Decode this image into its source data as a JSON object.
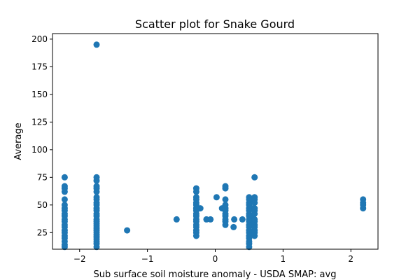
{
  "chart_data": {
    "type": "scatter",
    "title": "Scatter plot for Snake Gourd",
    "xlabel": "Sub surface soil moisture anomaly - USDA SMAP: avg",
    "ylabel": "Average",
    "xlim": [
      -2.4,
      2.4
    ],
    "ylim": [
      10,
      205
    ],
    "xticks": [
      -2,
      -1,
      0,
      1,
      2
    ],
    "xtick_labels": [
      "−2",
      "−1",
      "0",
      "1",
      "2"
    ],
    "yticks": [
      25,
      50,
      75,
      100,
      125,
      150,
      175,
      200
    ],
    "ytick_labels": [
      "25",
      "50",
      "75",
      "100",
      "125",
      "150",
      "175",
      "200"
    ],
    "grid": false,
    "marker_color": "#1f77b4",
    "points": [
      [
        -2.22,
        12
      ],
      [
        -2.22,
        14
      ],
      [
        -2.22,
        17
      ],
      [
        -2.22,
        20
      ],
      [
        -2.22,
        22
      ],
      [
        -2.22,
        25
      ],
      [
        -2.22,
        27
      ],
      [
        -2.22,
        30
      ],
      [
        -2.22,
        32
      ],
      [
        -2.22,
        35
      ],
      [
        -2.22,
        37
      ],
      [
        -2.22,
        40
      ],
      [
        -2.22,
        42
      ],
      [
        -2.22,
        45
      ],
      [
        -2.22,
        47
      ],
      [
        -2.22,
        50
      ],
      [
        -2.22,
        55
      ],
      [
        -2.22,
        62
      ],
      [
        -2.22,
        65
      ],
      [
        -2.22,
        67
      ],
      [
        -2.22,
        75
      ],
      [
        -1.75,
        12
      ],
      [
        -1.75,
        15
      ],
      [
        -1.75,
        17
      ],
      [
        -1.75,
        19
      ],
      [
        -1.75,
        21
      ],
      [
        -1.75,
        23
      ],
      [
        -1.75,
        25
      ],
      [
        -1.75,
        27
      ],
      [
        -1.75,
        29
      ],
      [
        -1.75,
        31
      ],
      [
        -1.75,
        33
      ],
      [
        -1.75,
        35
      ],
      [
        -1.75,
        37
      ],
      [
        -1.75,
        40
      ],
      [
        -1.75,
        42
      ],
      [
        -1.75,
        45
      ],
      [
        -1.75,
        47
      ],
      [
        -1.75,
        50
      ],
      [
        -1.75,
        52
      ],
      [
        -1.75,
        55
      ],
      [
        -1.75,
        57
      ],
      [
        -1.75,
        62
      ],
      [
        -1.75,
        65
      ],
      [
        -1.75,
        67
      ],
      [
        -1.75,
        72
      ],
      [
        -1.75,
        75
      ],
      [
        -1.75,
        195
      ],
      [
        -1.3,
        27
      ],
      [
        -0.57,
        37
      ],
      [
        -0.28,
        22
      ],
      [
        -0.28,
        25
      ],
      [
        -0.28,
        27
      ],
      [
        -0.28,
        30
      ],
      [
        -0.28,
        32
      ],
      [
        -0.28,
        35
      ],
      [
        -0.28,
        37
      ],
      [
        -0.28,
        40
      ],
      [
        -0.28,
        42
      ],
      [
        -0.28,
        45
      ],
      [
        -0.28,
        47
      ],
      [
        -0.28,
        50
      ],
      [
        -0.28,
        52
      ],
      [
        -0.28,
        55
      ],
      [
        -0.28,
        57
      ],
      [
        -0.28,
        62
      ],
      [
        -0.28,
        65
      ],
      [
        -0.22,
        47
      ],
      [
        -0.13,
        37
      ],
      [
        -0.07,
        37
      ],
      [
        0.02,
        57
      ],
      [
        0.1,
        47
      ],
      [
        0.15,
        32
      ],
      [
        0.15,
        35
      ],
      [
        0.15,
        37
      ],
      [
        0.15,
        40
      ],
      [
        0.15,
        42
      ],
      [
        0.15,
        45
      ],
      [
        0.15,
        47
      ],
      [
        0.15,
        50
      ],
      [
        0.15,
        55
      ],
      [
        0.15,
        65
      ],
      [
        0.15,
        67
      ],
      [
        0.27,
        30
      ],
      [
        0.28,
        37
      ],
      [
        0.4,
        37
      ],
      [
        0.5,
        12
      ],
      [
        0.5,
        15
      ],
      [
        0.5,
        17
      ],
      [
        0.5,
        20
      ],
      [
        0.5,
        22
      ],
      [
        0.5,
        25
      ],
      [
        0.5,
        27
      ],
      [
        0.5,
        30
      ],
      [
        0.5,
        32
      ],
      [
        0.5,
        35
      ],
      [
        0.5,
        37
      ],
      [
        0.5,
        40
      ],
      [
        0.5,
        42
      ],
      [
        0.5,
        45
      ],
      [
        0.5,
        47
      ],
      [
        0.5,
        50
      ],
      [
        0.5,
        52
      ],
      [
        0.5,
        55
      ],
      [
        0.5,
        57
      ],
      [
        0.55,
        25
      ],
      [
        0.55,
        32
      ],
      [
        0.55,
        40
      ],
      [
        0.55,
        47
      ],
      [
        0.55,
        55
      ],
      [
        0.58,
        22
      ],
      [
        0.58,
        25
      ],
      [
        0.58,
        27
      ],
      [
        0.58,
        30
      ],
      [
        0.58,
        32
      ],
      [
        0.58,
        35
      ],
      [
        0.58,
        37
      ],
      [
        0.58,
        42
      ],
      [
        0.58,
        45
      ],
      [
        0.58,
        47
      ],
      [
        0.58,
        52
      ],
      [
        0.58,
        55
      ],
      [
        0.58,
        57
      ],
      [
        0.58,
        75
      ],
      [
        2.18,
        47
      ],
      [
        2.18,
        50
      ],
      [
        2.18,
        52
      ],
      [
        2.18,
        55
      ]
    ]
  }
}
